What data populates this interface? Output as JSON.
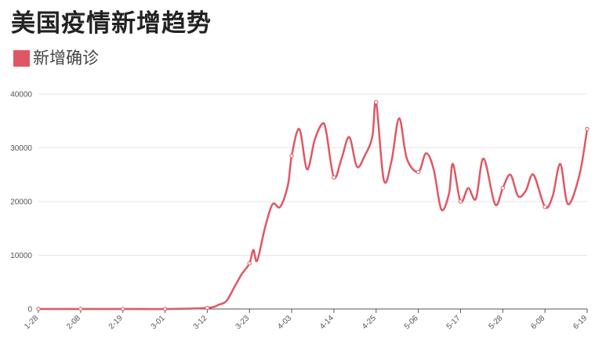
{
  "title": "美国疫情新增趋势",
  "chart_data": {
    "type": "line",
    "title": "美国疫情新增趋势",
    "xlabel": "",
    "ylabel": "",
    "ylim": [
      0,
      40000
    ],
    "grid": true,
    "legend": {
      "position": "top-left",
      "entries": [
        "新增确诊"
      ]
    },
    "series": [
      {
        "name": "新增确诊",
        "color": "#e05764",
        "x": [
          "1-28",
          "2-08",
          "2-19",
          "3-01",
          "3-12",
          "3-15",
          "3-17",
          "3-19",
          "3-21",
          "3-23",
          "3-24",
          "3-25",
          "3-27",
          "3-29",
          "3-31",
          "4-02",
          "4-03",
          "4-05",
          "4-07",
          "4-09",
          "4-11",
          "4-12",
          "4-14",
          "4-16",
          "4-18",
          "4-20",
          "4-22",
          "4-24",
          "4-25",
          "4-27",
          "4-29",
          "5-01",
          "5-03",
          "5-06",
          "5-08",
          "5-10",
          "5-12",
          "5-14",
          "5-15",
          "5-17",
          "5-19",
          "5-21",
          "5-23",
          "5-26",
          "5-28",
          "5-30",
          "6-01",
          "6-03",
          "6-05",
          "6-08",
          "6-10",
          "6-12",
          "6-14",
          "6-17",
          "6-19"
        ],
        "values": [
          0,
          0,
          0,
          0,
          200,
          800,
          1500,
          4000,
          6500,
          8500,
          11000,
          9000,
          15000,
          19500,
          19000,
          23000,
          28500,
          33500,
          26000,
          31500,
          34500,
          33000,
          24500,
          28000,
          32000,
          26500,
          28500,
          32000,
          38500,
          24000,
          27500,
          35500,
          28000,
          25500,
          29000,
          26000,
          18500,
          21500,
          27000,
          20000,
          22500,
          20500,
          28000,
          19500,
          22500,
          25000,
          21000,
          22000,
          25000,
          19000,
          21000,
          27000,
          19500,
          25000,
          33500
        ]
      }
    ],
    "x_ticks": [
      "1-28",
      "2-08",
      "2-19",
      "3-01",
      "3-12",
      "3-23",
      "4-03",
      "4-14",
      "4-25",
      "5-06",
      "5-17",
      "5-28",
      "6-08",
      "6-19"
    ],
    "y_ticks": [
      0,
      10000,
      20000,
      30000,
      40000
    ],
    "marker_labels": [
      "1-28",
      "2-08",
      "2-19",
      "3-01",
      "3-12",
      "3-23",
      "4-03",
      "4-14",
      "4-25",
      "5-06",
      "5-17",
      "5-28",
      "6-08",
      "6-19"
    ]
  }
}
